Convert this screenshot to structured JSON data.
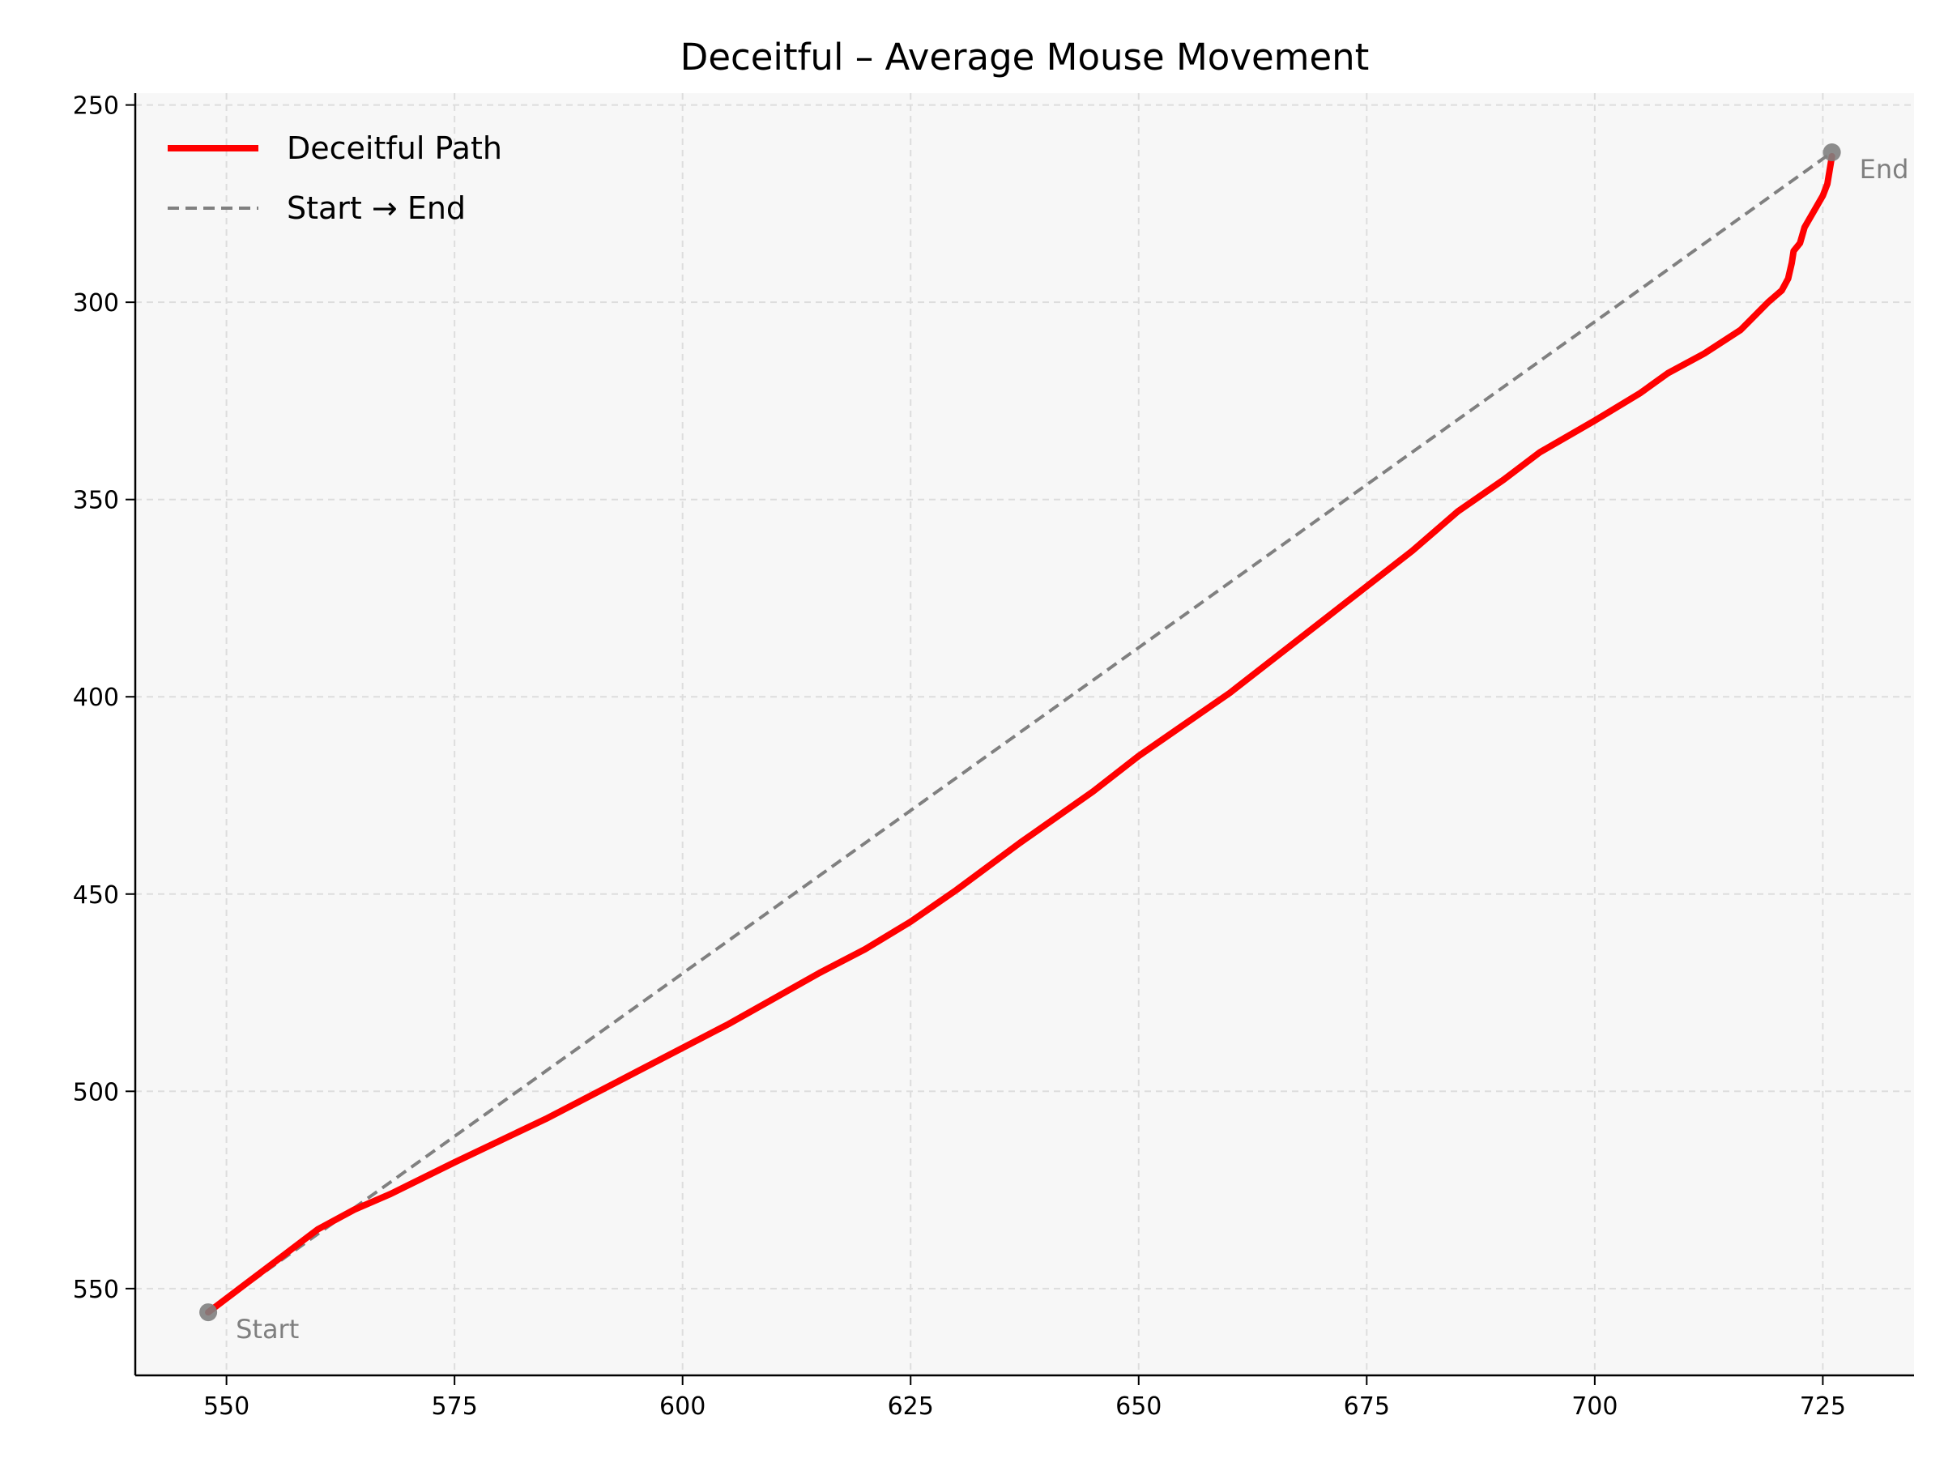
{
  "chart_data": {
    "type": "line",
    "title": "Deceitful – Average Mouse Movement",
    "xlabel": "",
    "ylabel": "",
    "xlim": [
      540,
      735
    ],
    "ylim": [
      572,
      247
    ],
    "y_inverted": true,
    "x_ticks": [
      550,
      575,
      600,
      625,
      650,
      675,
      700,
      725
    ],
    "y_ticks": [
      250,
      300,
      350,
      400,
      450,
      500,
      550
    ],
    "grid": true,
    "legend_position": "top-left",
    "colors": {
      "background": "#f7f7f7",
      "path": "#ff0000",
      "reference": "#808080",
      "markers": "#7f7f7f",
      "grid": "#dddddd"
    },
    "series": [
      {
        "name": "Deceitful Path",
        "style": "solid",
        "x": [
          548,
          552,
          556,
          560,
          564,
          568,
          575,
          585,
          595,
          605,
          615,
          620,
          625,
          630,
          637,
          645,
          650,
          655,
          660,
          665,
          670,
          675,
          680,
          685,
          690,
          694,
          700,
          705,
          708,
          712,
          716,
          719,
          720.5,
          721.2,
          721.6,
          721.8,
          722.5,
          723,
          724,
          725,
          725.5,
          726
        ],
        "y": [
          556,
          549,
          542,
          535,
          530,
          526,
          518,
          507,
          495,
          483,
          470,
          464,
          457,
          449,
          437,
          424,
          415,
          407,
          399,
          390,
          381,
          372,
          363,
          353,
          345,
          338,
          330,
          323,
          318,
          313,
          307,
          300,
          297,
          294,
          290,
          287,
          285,
          281,
          277,
          273,
          270,
          263
        ]
      },
      {
        "name": "Start → End",
        "style": "dashed",
        "x": [
          548,
          726
        ],
        "y": [
          556,
          262
        ]
      }
    ],
    "annotations": [
      {
        "label": "Start",
        "x": 548,
        "y": 556
      },
      {
        "label": "End",
        "x": 726,
        "y": 262
      }
    ]
  }
}
